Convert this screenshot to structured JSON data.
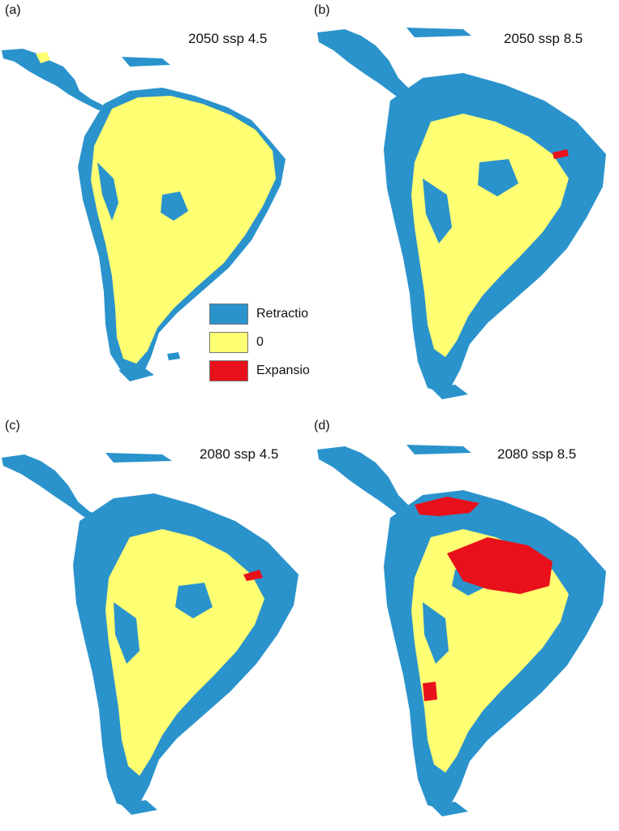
{
  "colors": {
    "retraction": "#2b93cc",
    "stable": "#ffff73",
    "expansion": "#e8101a",
    "background": "#ffffff"
  },
  "panels": [
    {
      "letter": "(a)",
      "title": "2050 ssp 4.5"
    },
    {
      "letter": "(b)",
      "title": "2050 ssp 8.5"
    },
    {
      "letter": "(c)",
      "title": "2080 ssp 4.5"
    },
    {
      "letter": "(d)",
      "title": "2080 ssp 8.5"
    }
  ],
  "legend": {
    "items": [
      {
        "label": "Retraction",
        "color": "#2b93cc"
      },
      {
        "label": "0",
        "color": "#ffff73"
      },
      {
        "label": "Expansion",
        "color": "#e8101a"
      }
    ]
  }
}
